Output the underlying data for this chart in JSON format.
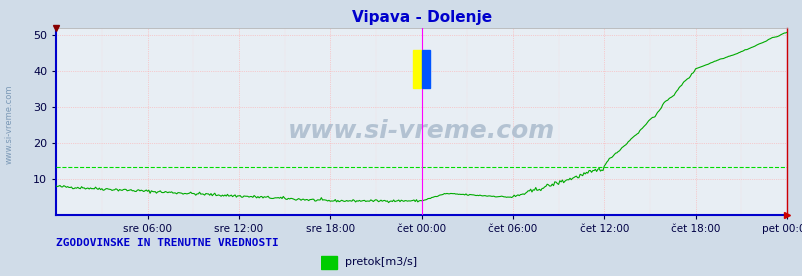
{
  "title": "Vipava - Dolenje",
  "title_color": "#0000cc",
  "bg_color": "#d0dce8",
  "plot_bg_color": "#e8eef4",
  "watermark": "www.si-vreme.com",
  "watermark_color": "#aabbcc",
  "footer_text": "ZGODOVINSKE IN TRENUTNE VREDNOSTI",
  "footer_color": "#0000cc",
  "legend_label": "pretok[m3/s]",
  "legend_color": "#00cc00",
  "ylim": [
    0,
    52
  ],
  "yticks": [
    10,
    20,
    30,
    40,
    50
  ],
  "tick_labels": [
    "sre 06:00",
    "sre 12:00",
    "sre 18:00",
    "čet 00:00",
    "čet 06:00",
    "čet 12:00",
    "čet 18:00",
    "pet 00:00"
  ],
  "tick_positions": [
    72,
    144,
    216,
    288,
    360,
    432,
    504,
    576
  ],
  "total_points": 577,
  "line_color": "#00aa00",
  "avg_line_color": "#00dd00",
  "avg_value": 13.5,
  "vline_color": "#ff00ff",
  "vline_positions": [
    288,
    576
  ],
  "grid_major_color": "#ffaaaa",
  "top_marker_color": "#880000",
  "right_marker_color": "#cc0000"
}
